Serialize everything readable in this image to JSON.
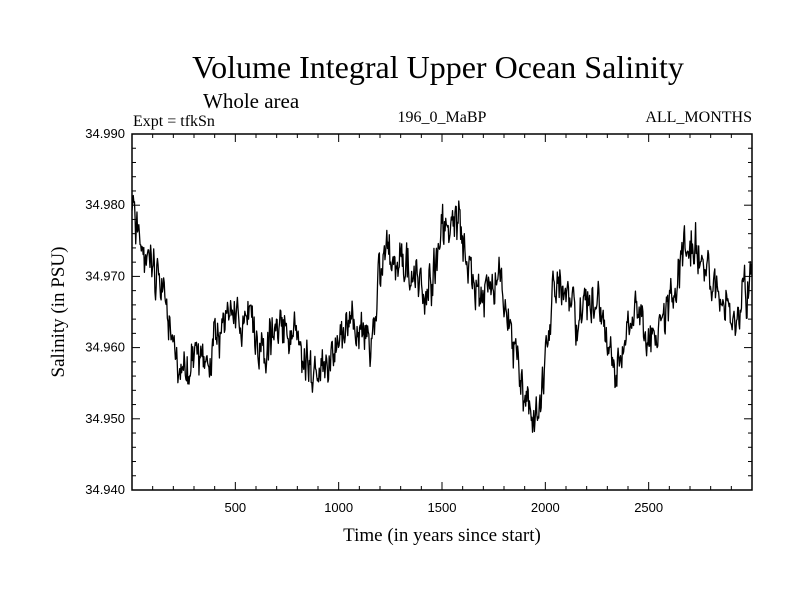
{
  "chart_data": {
    "type": "line",
    "title": "Volume Integral Upper Ocean Salinity",
    "subtitle": "Whole area",
    "expt_label": "Expt = tfkSn",
    "center_label": "196_0_MaBP",
    "right_label": "ALL_MONTHS",
    "xlabel": "Time (in years since start)",
    "ylabel": "Salinity (in PSU)",
    "xlim": [
      0,
      3000
    ],
    "ylim": [
      34.94,
      34.99
    ],
    "xticks": [
      500,
      1000,
      1500,
      2000,
      2500
    ],
    "xtick_labels": [
      "500",
      "1000",
      "1500",
      "2000",
      "2500"
    ],
    "yticks": [
      34.94,
      34.95,
      34.96,
      34.97,
      34.98,
      34.99
    ],
    "ytick_labels": [
      "34.940",
      "34.950",
      "34.960",
      "34.970",
      "34.980",
      "34.990"
    ],
    "series": [
      {
        "name": "salinity",
        "color": "#000000",
        "noise": 0.0045,
        "x": [
          0,
          30,
          80,
          120,
          160,
          200,
          230,
          260,
          300,
          340,
          380,
          420,
          460,
          500,
          540,
          580,
          620,
          660,
          700,
          760,
          800,
          840,
          880,
          920,
          960,
          1000,
          1050,
          1100,
          1150,
          1180,
          1220,
          1260,
          1300,
          1340,
          1380,
          1420,
          1460,
          1500,
          1540,
          1580,
          1620,
          1660,
          1700,
          1740,
          1780,
          1820,
          1860,
          1900,
          1940,
          1970,
          2000,
          2040,
          2080,
          2120,
          2160,
          2200,
          2240,
          2280,
          2320,
          2360,
          2400,
          2440,
          2480,
          2520,
          2560,
          2600,
          2640,
          2680,
          2720,
          2760,
          2800,
          2840,
          2880,
          2920,
          2960,
          3000
        ],
        "y": [
          34.979,
          34.976,
          34.973,
          34.971,
          34.967,
          34.96,
          34.956,
          34.957,
          34.958,
          34.956,
          34.96,
          34.962,
          34.965,
          34.966,
          34.964,
          34.963,
          34.96,
          34.96,
          34.964,
          34.962,
          34.961,
          34.958,
          34.957,
          34.959,
          34.96,
          34.962,
          34.963,
          34.962,
          34.961,
          34.966,
          34.973,
          34.974,
          34.972,
          34.971,
          34.97,
          34.967,
          34.971,
          34.976,
          34.979,
          34.977,
          34.972,
          34.968,
          34.967,
          34.969,
          34.971,
          34.966,
          34.957,
          34.953,
          34.952,
          34.95,
          34.958,
          34.968,
          34.967,
          34.965,
          34.964,
          34.966,
          34.967,
          34.963,
          34.958,
          34.956,
          34.961,
          34.964,
          34.963,
          34.961,
          34.963,
          34.966,
          34.969,
          34.976,
          34.974,
          34.972,
          34.97,
          34.969,
          34.967,
          34.966,
          34.966,
          34.969
        ]
      }
    ]
  }
}
